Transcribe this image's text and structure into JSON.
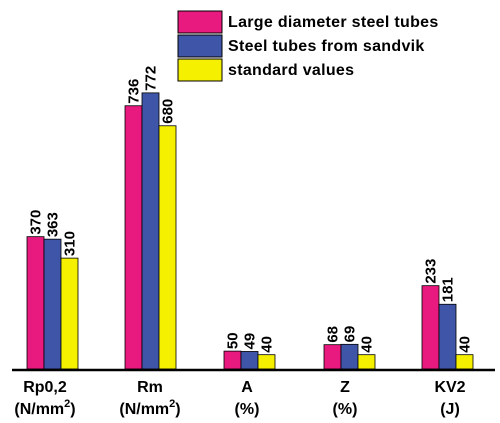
{
  "chart_data": {
    "type": "bar",
    "title": "",
    "xlabel": "",
    "ylabel": "",
    "categories": [
      {
        "line1": "Rp0,2",
        "line2": "(N/mm",
        "sup": "2",
        "close": ")"
      },
      {
        "line1": "Rm",
        "line2": "(N/mm",
        "sup": "2",
        "close": ")"
      },
      {
        "line1": "A",
        "line2": "(%)",
        "sup": "",
        "close": ""
      },
      {
        "line1": "Z",
        "line2": "(%)",
        "sup": "",
        "close": ""
      },
      {
        "line1": "KV2",
        "line2": "(J)",
        "sup": "",
        "close": ""
      }
    ],
    "series": [
      {
        "name": "Large diameter steel tubes",
        "color": "#e8197f",
        "values": [
          370,
          736,
          50,
          68,
          233
        ]
      },
      {
        "name": "Steel tubes from sandvik",
        "color": "#3f56a8",
        "values": [
          363,
          772,
          49,
          69,
          181
        ]
      },
      {
        "name": "standard values",
        "color": "#f5f000",
        "values": [
          310,
          680,
          40,
          40,
          40
        ]
      }
    ],
    "ylim": [
      0,
      800
    ],
    "grid": false,
    "legend_position": "top-right"
  }
}
